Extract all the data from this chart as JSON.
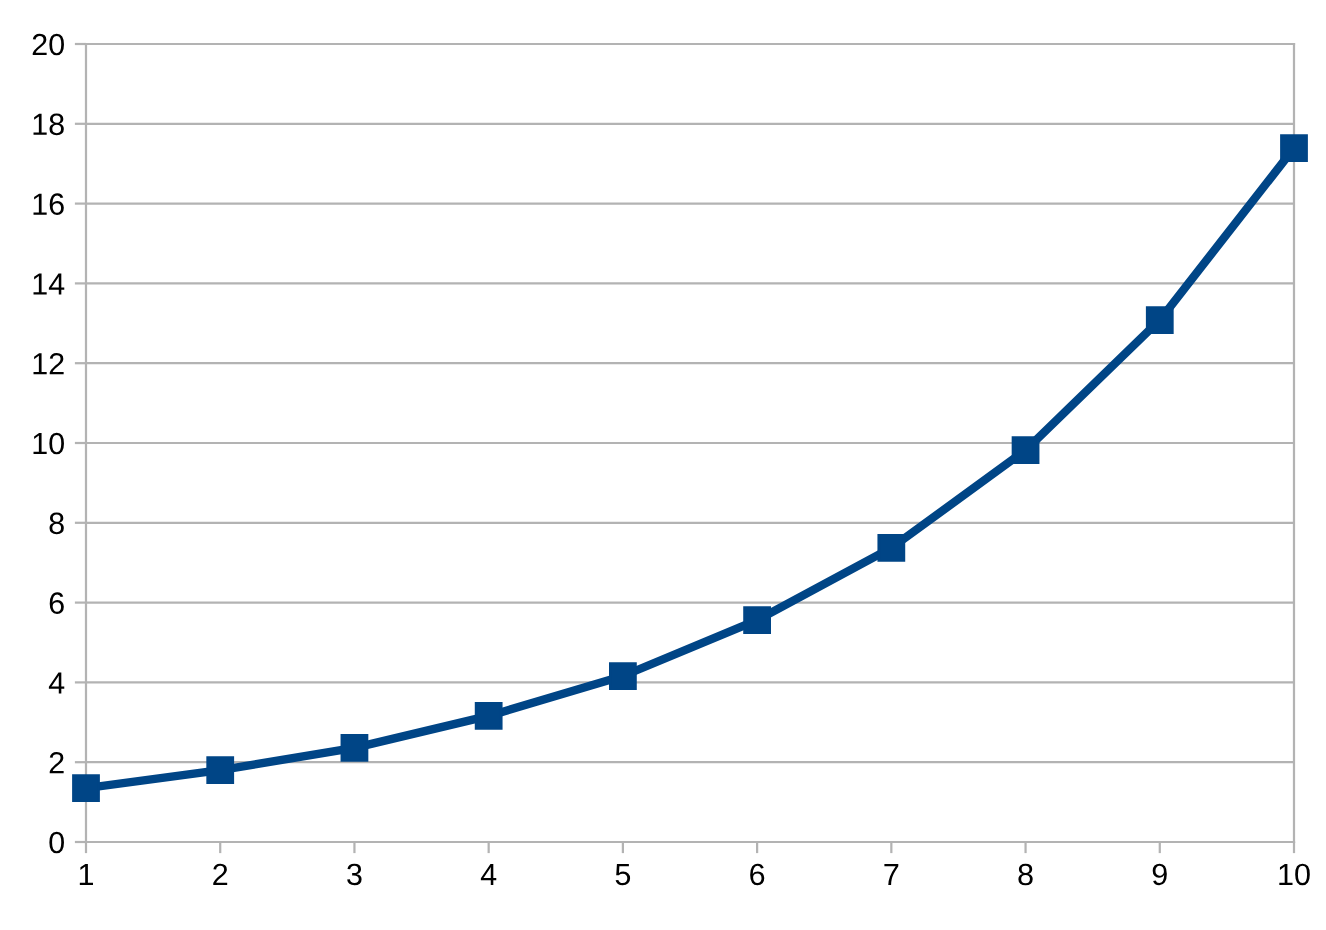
{
  "chart_data": {
    "type": "line",
    "x": [
      1,
      2,
      3,
      4,
      5,
      6,
      7,
      8,
      9,
      10
    ],
    "series": [
      {
        "color": "#004586",
        "values": [
          1.35,
          1.8,
          2.36,
          3.16,
          4.16,
          5.56,
          7.37,
          9.82,
          13.08,
          17.39
        ]
      }
    ],
    "xlim": [
      1,
      10
    ],
    "xticks": [
      1,
      2,
      3,
      4,
      5,
      6,
      7,
      8,
      9,
      10
    ],
    "ylim": [
      0,
      20
    ],
    "yticks": [
      0,
      2,
      4,
      6,
      8,
      10,
      12,
      14,
      16,
      18,
      20
    ],
    "grid": "y",
    "marker": "square",
    "line_style": "solid",
    "legend": false
  }
}
